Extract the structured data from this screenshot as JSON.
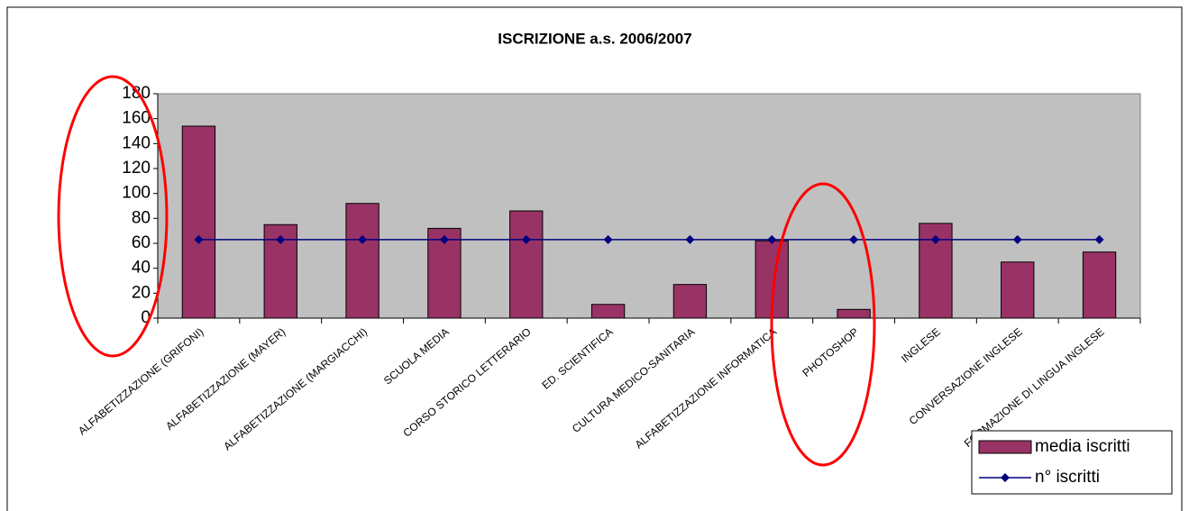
{
  "chart_data": {
    "type": "bar_line",
    "title": "ISCRIZIONE a.s. 2006/2007",
    "categories": [
      "ALFABETIZZAZIONE (GRIFONI)",
      "ALFABETIZZAZIONE (MAYER)",
      "ALFABETIZZAZIONE (MARGIACCHI)",
      "SCUOLA MEDIA",
      "CORSO STORICO LETTERARIO",
      "ED. SCIENTIFICA",
      "CULTURA MEDICO-SANITARIA",
      "ALFABETIZZAZIONE INFORMATICA",
      "PHOTOSHOP",
      "INGLESE",
      "CONVERSAZIONE INGLESE",
      "FORMAZIONE DI LINGUA INGLESE"
    ],
    "series": [
      {
        "name": "media iscritti",
        "type": "bar",
        "color": "#993366",
        "values": [
          154,
          75,
          92,
          72,
          86,
          11,
          27,
          62,
          7,
          76,
          45,
          53
        ]
      },
      {
        "name": "n° iscritti",
        "type": "line",
        "color": "#000080",
        "values": [
          63,
          63,
          63,
          63,
          63,
          63,
          63,
          63,
          63,
          63,
          63,
          63
        ]
      }
    ],
    "ylim": [
      0,
      180
    ],
    "yticks": [
      0,
      20,
      40,
      60,
      80,
      100,
      120,
      140,
      160,
      180
    ],
    "grid": false,
    "legend": "lower right"
  }
}
